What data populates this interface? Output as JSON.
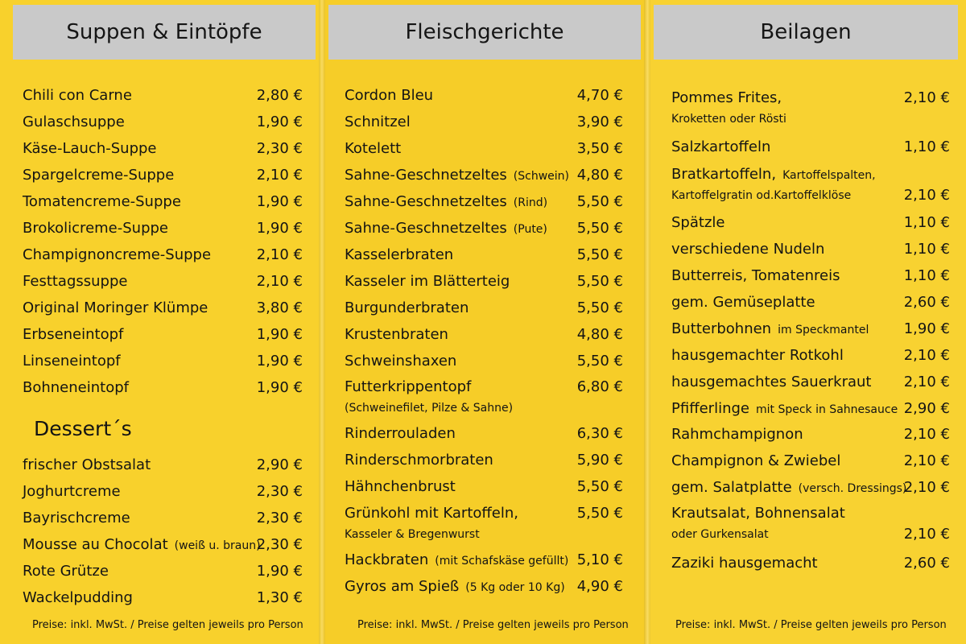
{
  "columns": [
    {
      "title": "Suppen & Eintöpfe",
      "items": [
        {
          "name": "Chili con Carne",
          "price": "2,80 €"
        },
        {
          "name": "Gulaschsuppe",
          "price": "1,90 €"
        },
        {
          "name": "Käse-Lauch-Suppe",
          "price": "2,30 €"
        },
        {
          "name": "Spargelcreme-Suppe",
          "price": "2,10 €"
        },
        {
          "name": "Tomatencreme-Suppe",
          "price": "1,90 €"
        },
        {
          "name": "Brokolicreme-Suppe",
          "price": "1,90 €"
        },
        {
          "name": "Champignoncreme-Suppe",
          "price": "2,10 €"
        },
        {
          "name": "Festtagssuppe",
          "price": "2,10 €"
        },
        {
          "name": "Original Moringer Klümpe",
          "price": "3,80 €"
        },
        {
          "name": "Erbseneintopf",
          "price": "1,90 €"
        },
        {
          "name": "Linseneintopf",
          "price": "1,90 €"
        },
        {
          "name": "Bohneneintopf",
          "price": "1,90 €"
        }
      ],
      "dessert_title": "Dessert´s",
      "desserts": [
        {
          "name": "frischer Obstsalat",
          "price": "2,90 €"
        },
        {
          "name": "Joghurtcreme",
          "price": "2,30 €"
        },
        {
          "name": "Bayrischcreme",
          "price": "2,30 €"
        },
        {
          "name": "Mousse au Chocolat",
          "note": "(weiß u. braun)",
          "price": "2,30 €"
        },
        {
          "name": "Rote Grütze",
          "price": "1,90 €"
        },
        {
          "name": "Wackelpudding",
          "price": "1,30 €"
        }
      ],
      "footer": "Preise: inkl. MwSt. / Preise gelten jeweils pro Person"
    },
    {
      "title": "Fleischgerichte",
      "items": [
        {
          "name": "Cordon Bleu",
          "price": "4,70 €"
        },
        {
          "name": "Schnitzel",
          "price": "3,90 €"
        },
        {
          "name": "Kotelett",
          "price": "3,50 €"
        },
        {
          "name": "Sahne-Geschnetzeltes",
          "note": "(Schwein)",
          "price": "4,80 €"
        },
        {
          "name": "Sahne-Geschnetzeltes",
          "note": "(Rind)",
          "price": "5,50 €"
        },
        {
          "name": "Sahne-Geschnetzeltes",
          "note": "(Pute)",
          "price": "5,50 €"
        },
        {
          "name": "Kasselerbraten",
          "price": "5,50 €"
        },
        {
          "name": "Kasseler im Blätterteig",
          "price": "5,50 €"
        },
        {
          "name": "Burgunderbraten",
          "price": "5,50 €"
        },
        {
          "name": "Krustenbraten",
          "price": "4,80 €"
        },
        {
          "name": "Schweinshaxen",
          "price": "5,50 €"
        },
        {
          "name": "Futterkrippentopf",
          "sub": "(Schweinefilet, Pilze & Sahne)",
          "price": "6,80 €"
        },
        {
          "name": "Rinderrouladen",
          "price": "6,30 €"
        },
        {
          "name": "Rinderschmorbraten",
          "price": "5,90 €"
        },
        {
          "name": "Hähnchenbrust",
          "price": "5,50 €"
        },
        {
          "name": "Grünkohl mit Kartoffeln,",
          "sub": "Kasseler & Bregenwurst",
          "price": "5,50 €"
        },
        {
          "name": "Hackbraten",
          "note": "(mit Schafskäse gefüllt)",
          "price": "5,10 €"
        },
        {
          "name": "Gyros am Spieß",
          "note": "(5 Kg oder 10 Kg)",
          "price": "4,90 €"
        }
      ],
      "footer": "Preise: inkl. MwSt. / Preise gelten jeweils pro Person"
    },
    {
      "title": "Beilagen",
      "items": [
        {
          "name": "Pommes Frites,",
          "sub": "Kroketten oder Rösti",
          "price": "2,10 €"
        },
        {
          "name": "Salzkartoffeln",
          "price": "1,10 €"
        },
        {
          "name": "Bratkartoffeln,",
          "note": "Kartoffelspalten,",
          "sub": "Kartoffelgratin od.Kartoffelklöse",
          "price": "2,10 €"
        },
        {
          "name": "Spätzle",
          "price": "1,10 €"
        },
        {
          "name": "verschiedene Nudeln",
          "price": "1,10 €"
        },
        {
          "name": "Butterreis, Tomatenreis",
          "price": "1,10 €"
        },
        {
          "name": "gem. Gemüseplatte",
          "price": "2,60 €"
        },
        {
          "name": "Butterbohnen",
          "note": "im Speckmantel",
          "price": "1,90 €"
        },
        {
          "name": "hausgemachter Rotkohl",
          "price": "2,10 €"
        },
        {
          "name": "hausgemachtes Sauerkraut",
          "price": "2,10 €"
        },
        {
          "name": "Pfifferlinge",
          "note": "mit Speck in Sahnesauce",
          "price": "2,90 €"
        },
        {
          "name": "Rahmchampignon",
          "price": "2,10 €"
        },
        {
          "name": "Champignon & Zwiebel",
          "price": "2,10 €"
        },
        {
          "name": "gem. Salatplatte",
          "note": "(versch. Dressings)",
          "price": "2,10 €"
        },
        {
          "name": "Krautsalat, Bohnensalat",
          "sub": "oder Gurkensalat",
          "price": "2,10 €"
        },
        {
          "name": "Zaziki hausgemacht",
          "price": "2,60 €"
        }
      ],
      "footer": "Preise: inkl. MwSt. / Preise gelten jeweils pro Person"
    }
  ]
}
